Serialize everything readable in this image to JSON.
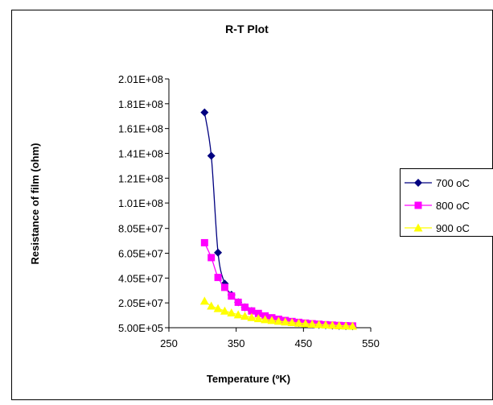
{
  "chart_data": {
    "type": "line",
    "title": "R-T Plot",
    "xlabel": "Temperature (ºK)",
    "ylabel": "Resistance of film (ohm)",
    "xlim": [
      250,
      550
    ],
    "x_ticks": [
      "250",
      "350",
      "450",
      "550"
    ],
    "x_tick_values": [
      250,
      350,
      450,
      550
    ],
    "ylim": [
      500000,
      201000000
    ],
    "y_ticks": [
      "5.00E+05",
      "2.05E+07",
      "4.05E+07",
      "6.05E+07",
      "8.05E+07",
      "1.01E+08",
      "1.21E+08",
      "1.41E+08",
      "1.61E+08",
      "1.81E+08",
      "2.01E+08"
    ],
    "y_tick_values": [
      500000,
      20500000,
      40500000,
      60500000,
      80500000,
      101000000,
      121000000,
      141000000,
      161000000,
      181000000,
      201000000
    ],
    "grid": false,
    "legend_position": "right",
    "series": [
      {
        "name": "700 oC",
        "color": "#000080",
        "marker": "diamond",
        "x": [
          303,
          313,
          323,
          333,
          343,
          353,
          363,
          373,
          383,
          393,
          403,
          413,
          423,
          433,
          443,
          453,
          463,
          473,
          483,
          493,
          503,
          513,
          523
        ],
        "y": [
          174000000,
          139000000,
          61000000,
          36000000,
          27000000,
          21000000,
          17000000,
          14000000,
          11500000,
          9500000,
          8000000,
          6800000,
          5800000,
          5000000,
          4300000,
          3700000,
          3200000,
          2800000,
          2500000,
          2200000,
          2000000,
          1800000,
          1600000
        ]
      },
      {
        "name": "800 oC",
        "color": "#ff00ff",
        "marker": "square",
        "x": [
          303,
          313,
          323,
          333,
          343,
          353,
          363,
          373,
          383,
          393,
          403,
          413,
          423,
          433,
          443,
          453,
          463,
          473,
          483,
          493,
          503,
          513,
          523
        ],
        "y": [
          69000000,
          57000000,
          41000000,
          33000000,
          26000000,
          21000000,
          17000000,
          14000000,
          12000000,
          10000000,
          8500000,
          7300000,
          6300000,
          5500000,
          4800000,
          4200000,
          3700000,
          3300000,
          2900000,
          2600000,
          2300000,
          2100000,
          1900000
        ]
      },
      {
        "name": "900 oC",
        "color": "#ffff00",
        "marker": "triangle",
        "x": [
          303,
          313,
          323,
          333,
          343,
          353,
          363,
          373,
          383,
          393,
          403,
          413,
          423,
          433,
          443,
          453,
          463,
          473,
          483,
          493,
          503,
          513,
          523
        ],
        "y": [
          22000000,
          18000000,
          16000000,
          14000000,
          12500000,
          11000000,
          9800000,
          8800000,
          7900000,
          7100000,
          6400000,
          5800000,
          5200000,
          4700000,
          4200000,
          3800000,
          3400000,
          3100000,
          2800000,
          2500000,
          2200000,
          2000000,
          1800000
        ]
      }
    ]
  }
}
